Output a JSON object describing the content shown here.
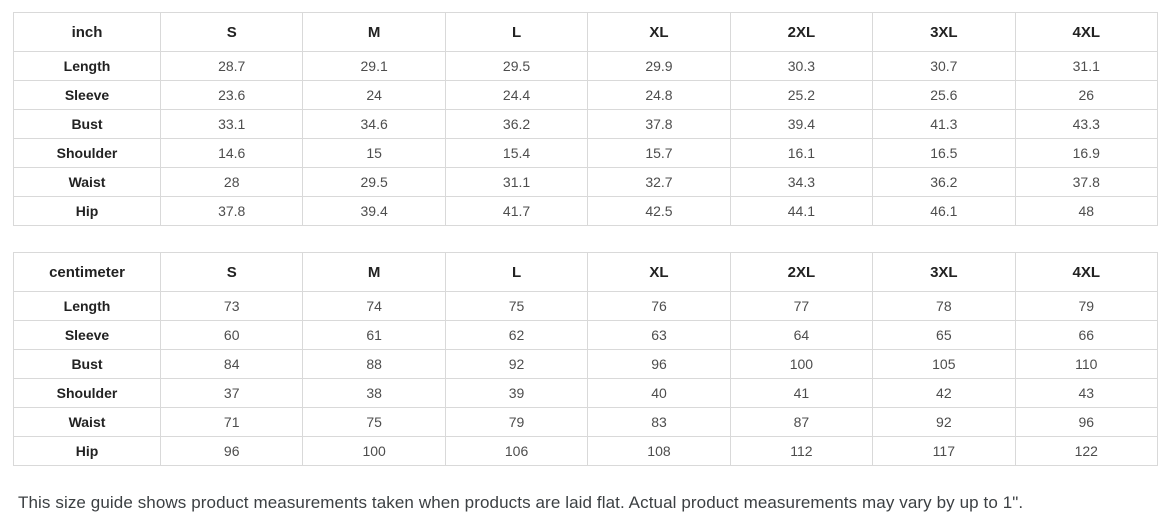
{
  "colors": {
    "border": "#d9d9d9",
    "header_text": "#222222",
    "value_text": "#4d4d4d",
    "note_text": "#3c4043",
    "background": "#ffffff"
  },
  "tables": [
    {
      "unit_label": "inch",
      "columns": [
        "S",
        "M",
        "L",
        "XL",
        "2XL",
        "3XL",
        "4XL"
      ],
      "rows": [
        {
          "label": "Length",
          "values": [
            "28.7",
            "29.1",
            "29.5",
            "29.9",
            "30.3",
            "30.7",
            "31.1"
          ]
        },
        {
          "label": "Sleeve",
          "values": [
            "23.6",
            "24",
            "24.4",
            "24.8",
            "25.2",
            "25.6",
            "26"
          ]
        },
        {
          "label": "Bust",
          "values": [
            "33.1",
            "34.6",
            "36.2",
            "37.8",
            "39.4",
            "41.3",
            "43.3"
          ]
        },
        {
          "label": "Shoulder",
          "values": [
            "14.6",
            "15",
            "15.4",
            "15.7",
            "16.1",
            "16.5",
            "16.9"
          ]
        },
        {
          "label": "Waist",
          "values": [
            "28",
            "29.5",
            "31.1",
            "32.7",
            "34.3",
            "36.2",
            "37.8"
          ]
        },
        {
          "label": "Hip",
          "values": [
            "37.8",
            "39.4",
            "41.7",
            "42.5",
            "44.1",
            "46.1",
            "48"
          ]
        }
      ]
    },
    {
      "unit_label": "centimeter",
      "columns": [
        "S",
        "M",
        "L",
        "XL",
        "2XL",
        "3XL",
        "4XL"
      ],
      "rows": [
        {
          "label": "Length",
          "values": [
            "73",
            "74",
            "75",
            "76",
            "77",
            "78",
            "79"
          ]
        },
        {
          "label": "Sleeve",
          "values": [
            "60",
            "61",
            "62",
            "63",
            "64",
            "65",
            "66"
          ]
        },
        {
          "label": "Bust",
          "values": [
            "84",
            "88",
            "92",
            "96",
            "100",
            "105",
            "110"
          ]
        },
        {
          "label": "Shoulder",
          "values": [
            "37",
            "38",
            "39",
            "40",
            "41",
            "42",
            "43"
          ]
        },
        {
          "label": "Waist",
          "values": [
            "71",
            "75",
            "79",
            "83",
            "87",
            "92",
            "96"
          ]
        },
        {
          "label": "Hip",
          "values": [
            "96",
            "100",
            "106",
            "108",
            "112",
            "117",
            "122"
          ]
        }
      ]
    }
  ],
  "footer": {
    "note": "This size guide shows product measurements taken when products are laid flat. Actual product measurements may vary by up to 1\"."
  }
}
